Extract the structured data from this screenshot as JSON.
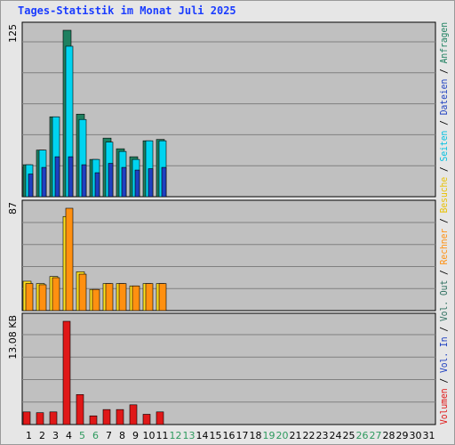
{
  "title": "Tages-Statistik im Monat Juli 2025",
  "chart_data": {
    "type": "bar",
    "days": [
      "1",
      "2",
      "3",
      "4",
      "5",
      "6",
      "7",
      "8",
      "9",
      "10",
      "11",
      "12",
      "13",
      "14",
      "15",
      "16",
      "17",
      "18",
      "19",
      "20",
      "21",
      "22",
      "23",
      "24",
      "25",
      "26",
      "27",
      "28",
      "29",
      "30",
      "31"
    ],
    "weekend_days": [
      "5",
      "6",
      "12",
      "13",
      "19",
      "20",
      "26",
      "27"
    ],
    "weekend_color": "#2e9a5e",
    "weekday_color": "#000000",
    "panels": [
      {
        "id": "requests",
        "ylabel": "125",
        "ymax": 125,
        "series": [
          {
            "name": "Anfragen",
            "color": "#1e8060",
            "values": [
              24,
              35,
              60,
              125,
              62,
              28,
              44,
              36,
              30,
              42,
              43
            ]
          },
          {
            "name": "Dateien",
            "color": "#00d4f0",
            "values": [
              24,
              35,
              60,
              113,
              58,
              28,
              41,
              34,
              28,
              42,
              42
            ]
          },
          {
            "name": "Seiten",
            "color": "#1e40c0",
            "values": [
              17,
              22,
              30,
              30,
              24,
              18,
              25,
              22,
              20,
              21,
              22
            ]
          }
        ]
      },
      {
        "id": "visits",
        "ylabel": "87",
        "ymax": 87,
        "series": [
          {
            "name": "Besuche",
            "color": "#ffe020",
            "values": [
              25,
              23,
              29,
              80,
              33,
              18,
              23,
              23,
              21,
              23,
              23
            ]
          },
          {
            "name": "Rechner",
            "color": "#ff9010",
            "values": [
              23,
              22,
              28,
              87,
              31,
              18,
              23,
              23,
              21,
              23,
              23
            ]
          }
        ]
      },
      {
        "id": "volume",
        "ylabel": "13.08 KB",
        "ymax": 13.08,
        "series": [
          {
            "name": "Volumen",
            "color": "#e01818",
            "values": [
              1.6,
              1.5,
              1.6,
              13.08,
              3.8,
              1.1,
              1.9,
              1.9,
              2.5,
              1.3,
              1.6
            ]
          }
        ]
      }
    ],
    "legend": [
      {
        "label": "Volumen",
        "color": "#e01818"
      },
      {
        "label": " / ",
        "color": "#000000"
      },
      {
        "label": "Vol. In",
        "color": "#1e40c0"
      },
      {
        "label": " / ",
        "color": "#000000"
      },
      {
        "label": "Vol. Out",
        "color": "#2e7060"
      },
      {
        "label": " / ",
        "color": "#000000"
      },
      {
        "label": "Rechner",
        "color": "#ff9010"
      },
      {
        "label": " / ",
        "color": "#000000"
      },
      {
        "label": "Besuche",
        "color": "#e8c000"
      },
      {
        "label": " / ",
        "color": "#000000"
      },
      {
        "label": "Seiten",
        "color": "#00c0e0"
      },
      {
        "label": " / ",
        "color": "#000000"
      },
      {
        "label": "Dateien",
        "color": "#1e40c0"
      },
      {
        "label": " / ",
        "color": "#000000"
      },
      {
        "label": "Anfragen",
        "color": "#1e8060"
      }
    ],
    "grid": true
  }
}
